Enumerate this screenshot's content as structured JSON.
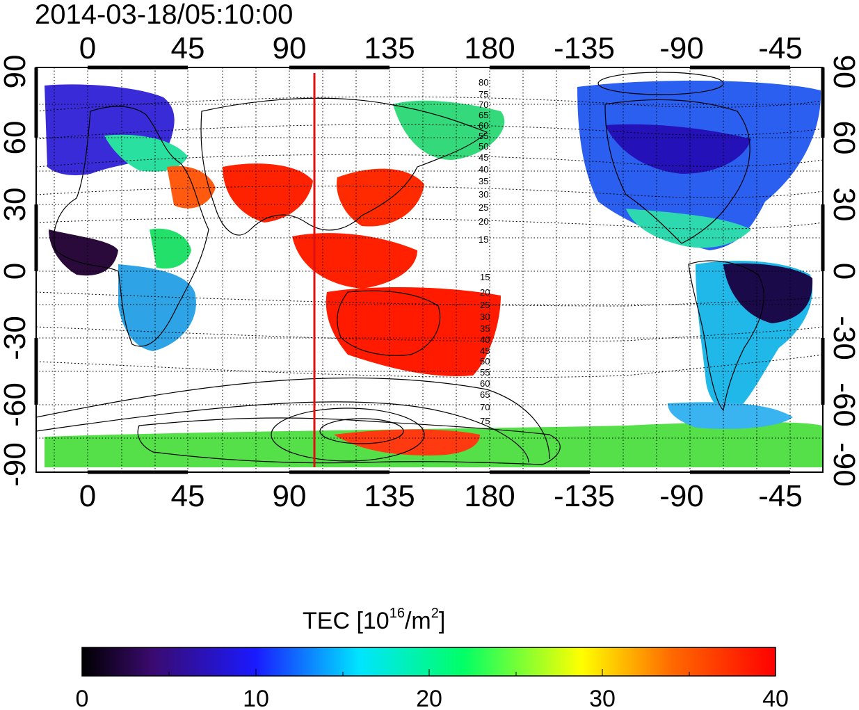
{
  "title": "2014-03-18/05:10:00",
  "map": {
    "lon_ticks_top": [
      "0",
      "45",
      "90",
      "135",
      "180",
      "-135",
      "-90",
      "-45"
    ],
    "lon_ticks_bottom": [
      "0",
      "45",
      "90",
      "135",
      "180",
      "-135",
      "-90",
      "-45"
    ],
    "lat_ticks_left": [
      "90",
      "60",
      "30",
      "0",
      "-30",
      "-60",
      "-90"
    ],
    "lat_ticks_right": [
      "90",
      "60",
      "30",
      "0",
      "-30",
      "-60",
      "-90"
    ],
    "subsolar_meridian_color": "#dd1111",
    "contour_labels_north": [
      "80",
      "75",
      "70",
      "65",
      "60",
      "55",
      "50",
      "45",
      "40",
      "35",
      "30",
      "25",
      "20",
      "15"
    ],
    "contour_labels_south": [
      "15",
      "20",
      "25",
      "30",
      "35",
      "40",
      "45",
      "50",
      "55",
      "60",
      "65",
      "70",
      "75"
    ]
  },
  "colorbar": {
    "title_prefix": "TEC  [10",
    "title_sup1": "16",
    "title_mid": "/m",
    "title_sup2": "2",
    "title_suffix": "]",
    "ticks": [
      "0",
      "10",
      "20",
      "30",
      "40"
    ],
    "colors": [
      "#000000",
      "#3a0a6e",
      "#1a1aff",
      "#00ccff",
      "#00ff66",
      "#ffff00",
      "#ff6a00",
      "#ff0000"
    ]
  }
}
